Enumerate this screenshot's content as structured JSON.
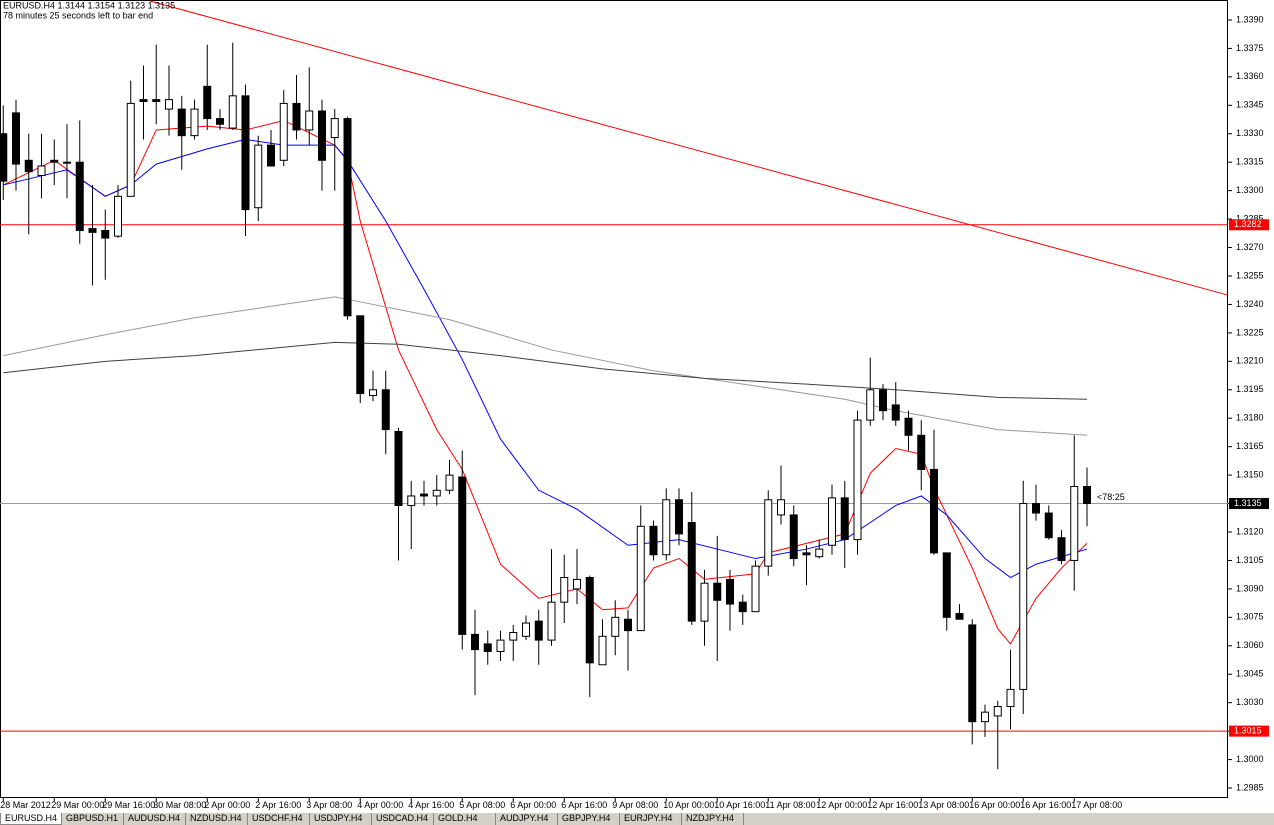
{
  "chart_data": {
    "type": "candlestick",
    "title": "EURUSD.H4  1.3144 1.3154 1.3123 1.3135",
    "subtitle": "78 minutes 25 seconds left to bar end",
    "timer_label": "<78:25",
    "categories": [
      "28 Mar 2012",
      null,
      null,
      null,
      "29 Mar 00:00",
      null,
      null,
      null,
      "29 Mar 16:00",
      null,
      null,
      null,
      "30 Mar 08:00",
      null,
      null,
      null,
      "2 Apr 00:00",
      null,
      null,
      null,
      "2 Apr 16:00",
      null,
      null,
      null,
      "3 Apr 08:00",
      null,
      null,
      null,
      "4 Apr 00:00",
      null,
      null,
      null,
      "4 Apr 16:00",
      null,
      null,
      null,
      "5 Apr 08:00",
      null,
      null,
      null,
      "6 Apr 00:00",
      null,
      null,
      null,
      "6 Apr 16:00",
      null,
      null,
      null,
      "9 Apr 08:00",
      null,
      null,
      null,
      "10 Apr 00:00",
      null,
      null,
      null,
      "10 Apr 16:00",
      null,
      null,
      null,
      "11 Apr 08:00",
      null,
      null,
      null,
      "12 Apr 00:00",
      null,
      null,
      null,
      "12 Apr 16:00",
      null,
      null,
      null,
      "13 Apr 08:00",
      null,
      null,
      null,
      "16 Apr 00:00",
      null,
      null,
      null,
      "16 Apr 16:00",
      null,
      null,
      null,
      "17 Apr 08:00",
      null
    ],
    "open": [
      1.333,
      1.3341,
      1.3316,
      1.3308,
      1.3316,
      1.3315,
      1.3315,
      1.328,
      1.3279,
      1.3276,
      1.3297,
      1.3348,
      1.3348,
      1.3343,
      1.3343,
      1.3329,
      1.3355,
      1.3338,
      1.3333,
      1.335,
      1.3291,
      1.3324,
      1.3316,
      1.3346,
      1.3332,
      1.3342,
      1.3328,
      1.3338,
      1.3234,
      1.3192,
      1.3195,
      1.3173,
      1.3134,
      1.314,
      1.3139,
      1.3142,
      1.3149,
      1.3066,
      1.3061,
      1.3057,
      1.3063,
      1.3065,
      1.3073,
      1.3063,
      1.3083,
      1.309,
      1.3096,
      1.305,
      1.3065,
      1.3074,
      1.3068,
      1.3123,
      1.3108,
      1.3137,
      1.3125,
      1.3073,
      1.3093,
      1.3095,
      1.3083,
      1.3078,
      1.3102,
      1.3129,
      1.3129,
      1.3109,
      1.3107,
      1.3113,
      1.3138,
      1.3116,
      1.3179,
      1.3195,
      1.3187,
      1.318,
      1.3171,
      1.3153,
      1.3109,
      1.3077,
      1.3071,
      1.302,
      1.3023,
      1.3028,
      1.3037,
      1.3135,
      1.313,
      1.3117,
      1.3105,
      1.3144
    ],
    "high": [
      1.3345,
      1.3348,
      1.333,
      1.333,
      1.3327,
      1.3335,
      1.3337,
      1.3303,
      1.329,
      1.3303,
      1.3358,
      1.3366,
      1.3377,
      1.3366,
      1.335,
      1.3348,
      1.3377,
      1.3343,
      1.3378,
      1.3356,
      1.3329,
      1.3332,
      1.3353,
      1.3361,
      1.3365,
      1.3348,
      1.3343,
      1.3339,
      1.3234,
      1.3205,
      1.3205,
      1.3175,
      1.3147,
      1.3147,
      1.315,
      1.3158,
      1.3163,
      1.3079,
      1.3068,
      1.3068,
      1.3071,
      1.3076,
      1.3079,
      1.3111,
      1.3108,
      1.3111,
      1.3097,
      1.3074,
      1.3084,
      1.3079,
      1.3134,
      1.3126,
      1.3143,
      1.3143,
      1.3141,
      1.31,
      1.3118,
      1.31,
      1.3087,
      1.3105,
      1.3142,
      1.3155,
      1.3134,
      1.3113,
      1.3116,
      1.3145,
      1.3147,
      1.3184,
      1.3212,
      1.3198,
      1.3199,
      1.3184,
      1.3179,
      1.3174,
      1.3109,
      1.3082,
      1.3074,
      1.3029,
      1.3031,
      1.3058,
      1.3147,
      1.3145,
      1.3134,
      1.3121,
      1.3171,
      1.3154
    ],
    "low": [
      1.3295,
      1.33,
      1.3277,
      1.3296,
      1.3303,
      1.3296,
      1.3272,
      1.325,
      1.3253,
      1.3275,
      1.3297,
      1.3327,
      1.3335,
      1.3329,
      1.3311,
      1.3327,
      1.3332,
      1.3332,
      1.3332,
      1.3276,
      1.3284,
      1.3313,
      1.3313,
      1.3327,
      1.3324,
      1.33,
      1.33,
      1.3232,
      1.3188,
      1.3189,
      1.3161,
      1.3105,
      1.3111,
      1.3134,
      1.3134,
      1.314,
      1.3058,
      1.3034,
      1.305,
      1.3052,
      1.3052,
      1.3063,
      1.305,
      1.306,
      1.3072,
      1.3082,
      1.3033,
      1.305,
      1.3055,
      1.3047,
      1.3068,
      1.3105,
      1.3105,
      1.3113,
      1.3071,
      1.306,
      1.3052,
      1.3068,
      1.3071,
      1.3078,
      1.3097,
      1.3124,
      1.3102,
      1.3092,
      1.3106,
      1.3108,
      1.3101,
      1.3108,
      1.3176,
      1.3179,
      1.3176,
      1.3163,
      1.3142,
      1.3108,
      1.3068,
      1.3074,
      1.3008,
      1.3012,
      1.2995,
      1.3016,
      1.3024,
      1.3126,
      1.3116,
      1.3103,
      1.3089,
      1.3123
    ],
    "close": [
      1.3305,
      1.3314,
      1.331,
      1.3313,
      1.3315,
      1.3315,
      1.3279,
      1.3278,
      1.3275,
      1.3297,
      1.3346,
      1.3347,
      1.3347,
      1.3348,
      1.3329,
      1.3343,
      1.3338,
      1.3335,
      1.335,
      1.329,
      1.3324,
      1.3313,
      1.3346,
      1.3332,
      1.3342,
      1.3316,
      1.3338,
      1.3234,
      1.3193,
      1.3195,
      1.3174,
      1.3134,
      1.3139,
      1.3139,
      1.3142,
      1.315,
      1.3066,
      1.3058,
      1.3057,
      1.3063,
      1.3067,
      1.3072,
      1.3063,
      1.3083,
      1.3096,
      1.3095,
      1.3051,
      1.3065,
      1.3075,
      1.3068,
      1.3123,
      1.3108,
      1.3137,
      1.3119,
      1.3073,
      1.3093,
      1.3084,
      1.3082,
      1.3078,
      1.3102,
      1.3137,
      1.3137,
      1.3106,
      1.3108,
      1.3111,
      1.3138,
      1.3116,
      1.3179,
      1.3195,
      1.3184,
      1.3179,
      1.3171,
      1.3153,
      1.3109,
      1.3075,
      1.3074,
      1.302,
      1.3025,
      1.3028,
      1.3037,
      1.3135,
      1.313,
      1.3117,
      1.3105,
      1.3144,
      1.3135
    ],
    "up_color": "#ffffff",
    "down_color": "#000000",
    "overlays": [
      {
        "color": "#ff0000",
        "x": [
          0,
          4,
          8,
          10,
          12,
          16,
          19,
          22,
          26,
          27,
          28,
          31,
          34,
          36,
          39,
          42,
          45,
          47,
          49,
          51,
          53,
          55,
          59,
          60,
          63,
          66,
          68,
          70,
          72,
          73,
          76,
          78,
          79,
          81,
          83,
          85
        ],
        "values": [
          1.3303,
          1.3316,
          1.3297,
          1.3303,
          1.3332,
          1.3334,
          1.3332,
          1.3337,
          1.3324,
          1.3316,
          1.3284,
          1.3216,
          1.3174,
          1.3153,
          1.3103,
          1.3085,
          1.309,
          1.3079,
          1.308,
          1.3101,
          1.3106,
          1.3095,
          1.3098,
          1.3109,
          1.3114,
          1.3119,
          1.3151,
          1.3164,
          1.3161,
          1.3143,
          1.3101,
          1.3069,
          1.3061,
          1.3085,
          1.3101,
          1.3114
        ]
      },
      {
        "color": "#0000ff",
        "x": [
          0,
          5,
          8,
          10,
          12,
          16,
          19,
          22,
          26,
          27,
          30,
          33,
          36,
          39,
          42,
          45,
          49,
          53,
          56,
          59,
          63,
          66,
          70,
          72,
          74,
          77,
          79,
          81,
          85
        ],
        "values": [
          1.3303,
          1.3311,
          1.3297,
          1.3303,
          1.3314,
          1.3322,
          1.3327,
          1.3324,
          1.3324,
          1.3316,
          1.3284,
          1.3248,
          1.3211,
          1.3169,
          1.3142,
          1.3132,
          1.3113,
          1.3116,
          1.3111,
          1.3106,
          1.3111,
          1.3116,
          1.3134,
          1.3139,
          1.3129,
          1.3106,
          1.3096,
          1.3103,
          1.3111
        ]
      },
      {
        "color": "#999999",
        "x": [
          0,
          8,
          15,
          22,
          26,
          29,
          35,
          43,
          51,
          59,
          66,
          70,
          78,
          85
        ],
        "values": [
          1.3213,
          1.3224,
          1.3233,
          1.324,
          1.3244,
          1.324,
          1.3232,
          1.3216,
          1.3205,
          1.3197,
          1.319,
          1.3184,
          1.3174,
          1.3171
        ]
      },
      {
        "color": "#404040",
        "x": [
          0,
          8,
          15,
          26,
          31,
          39,
          47,
          55,
          63,
          70,
          78,
          85
        ],
        "values": [
          1.3204,
          1.321,
          1.3213,
          1.322,
          1.3219,
          1.3213,
          1.3206,
          1.3201,
          1.3198,
          1.3195,
          1.3191,
          1.319
        ]
      }
    ],
    "trendlines": [
      {
        "color": "#ff0000",
        "x": [
          11.5,
          96
        ],
        "values": [
          1.34,
          1.3245
        ]
      }
    ],
    "levels": [
      {
        "value": 1.3282,
        "color": "#ff0000"
      },
      {
        "value": 1.3135,
        "color": "#000000",
        "line_color": "#999999"
      },
      {
        "value": 1.3015,
        "color": "#ff0000"
      }
    ],
    "ylim": [
      1.298,
      1.34
    ],
    "yticks": [
      1.2985,
      {
        "value": 1.3,
        "label": "1.3000"
      },
      1.3015,
      {
        "value": 1.303,
        "label": "1.3030"
      },
      1.3045,
      {
        "value": 1.306,
        "label": "1.3060"
      },
      1.3075,
      {
        "value": 1.309,
        "label": "1.3090"
      },
      1.3105,
      {
        "value": 1.312,
        "label": "1.3120"
      },
      1.3135,
      {
        "value": 1.315,
        "label": "1.3150"
      },
      1.3165,
      {
        "value": 1.318,
        "label": "1.3180"
      },
      1.3195,
      {
        "value": 1.321,
        "label": "1.3210"
      },
      1.3225,
      {
        "value": 1.324,
        "label": "1.3240"
      },
      1.3255,
      {
        "value": 1.327,
        "label": "1.3270"
      },
      1.3285,
      {
        "value": 1.33,
        "label": "1.3300"
      },
      1.3315,
      {
        "value": 1.333,
        "label": "1.3330"
      },
      1.3345,
      {
        "value": 1.336,
        "label": "1.3360"
      },
      1.3375,
      {
        "value": 1.339,
        "label": "1.3390"
      }
    ]
  },
  "tabs": [
    "EURUSD.H4",
    "GBPUSD.H1",
    "AUDUSD.H4",
    "NZDUSD.H4",
    "USDCHF.H4",
    "USDJPY.H4",
    "USDCAD.H4",
    "GOLD.H4",
    "AUDJPY.H4",
    "GBPJPY.H4",
    "EURJPY.H4",
    "NZDJPY.H4"
  ],
  "active_tab": 0
}
